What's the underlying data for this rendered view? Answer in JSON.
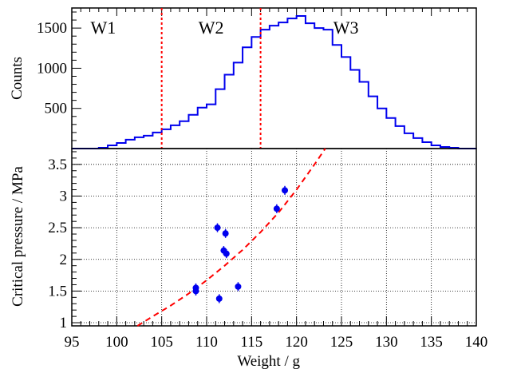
{
  "chart_data": [
    {
      "type": "histogram",
      "ylabel": "Counts",
      "xlim": [
        95,
        140
      ],
      "ylim": [
        0,
        1750
      ],
      "yticks": [
        500,
        1000,
        1500
      ],
      "bin_width": 1,
      "bin_start": 95,
      "counts": [
        0,
        0,
        0,
        10,
        40,
        70,
        110,
        140,
        160,
        200,
        240,
        290,
        340,
        420,
        510,
        550,
        740,
        920,
        1070,
        1260,
        1390,
        1480,
        1530,
        1570,
        1620,
        1650,
        1560,
        1500,
        1480,
        1290,
        1140,
        980,
        830,
        650,
        500,
        380,
        280,
        190,
        130,
        80,
        40,
        20,
        10,
        0,
        0
      ],
      "dividers": [
        105,
        116
      ],
      "regions": [
        {
          "label": "W1",
          "x": 98.5
        },
        {
          "label": "W2",
          "x": 110.5
        },
        {
          "label": "W3",
          "x": 125.5
        }
      ],
      "colors": {
        "hist": "#0000ee",
        "divider": "#ff0000"
      }
    },
    {
      "type": "scatter",
      "xlabel": "Weight / g",
      "ylabel": "Critical pressure / MPa",
      "xlim": [
        95,
        140
      ],
      "ylim": [
        0.95,
        3.75
      ],
      "xticks": [
        95,
        100,
        105,
        110,
        115,
        120,
        125,
        130,
        135,
        140
      ],
      "yticks": [
        1,
        1.5,
        2,
        2.5,
        3,
        3.5
      ],
      "ytick_labels": [
        "1",
        "1.5",
        "2",
        "2.5",
        "3",
        "3.5"
      ],
      "points": [
        {
          "x": 108.8,
          "y": 1.55,
          "err": 0.07
        },
        {
          "x": 108.8,
          "y": 1.5,
          "err": 0.07
        },
        {
          "x": 111.2,
          "y": 2.5,
          "err": 0.07
        },
        {
          "x": 111.4,
          "y": 1.38,
          "err": 0.07
        },
        {
          "x": 111.9,
          "y": 2.14,
          "err": 0.07
        },
        {
          "x": 112.1,
          "y": 2.41,
          "err": 0.07
        },
        {
          "x": 112.2,
          "y": 2.09,
          "err": 0.07
        },
        {
          "x": 113.5,
          "y": 1.57,
          "err": 0.07
        },
        {
          "x": 117.8,
          "y": 2.8,
          "err": 0.07
        },
        {
          "x": 118.7,
          "y": 3.09,
          "err": 0.07
        }
      ],
      "fit": {
        "x": [
          102.3,
          104,
          106,
          108,
          110,
          112,
          114,
          116,
          118,
          120,
          122,
          123.2
        ],
        "y": [
          0.95,
          1.1,
          1.27,
          1.46,
          1.67,
          1.9,
          2.15,
          2.43,
          2.74,
          3.1,
          3.5,
          3.75
        ]
      },
      "colors": {
        "points": "#0000ee",
        "fit": "#ff0000",
        "grid": "#000000"
      }
    }
  ]
}
